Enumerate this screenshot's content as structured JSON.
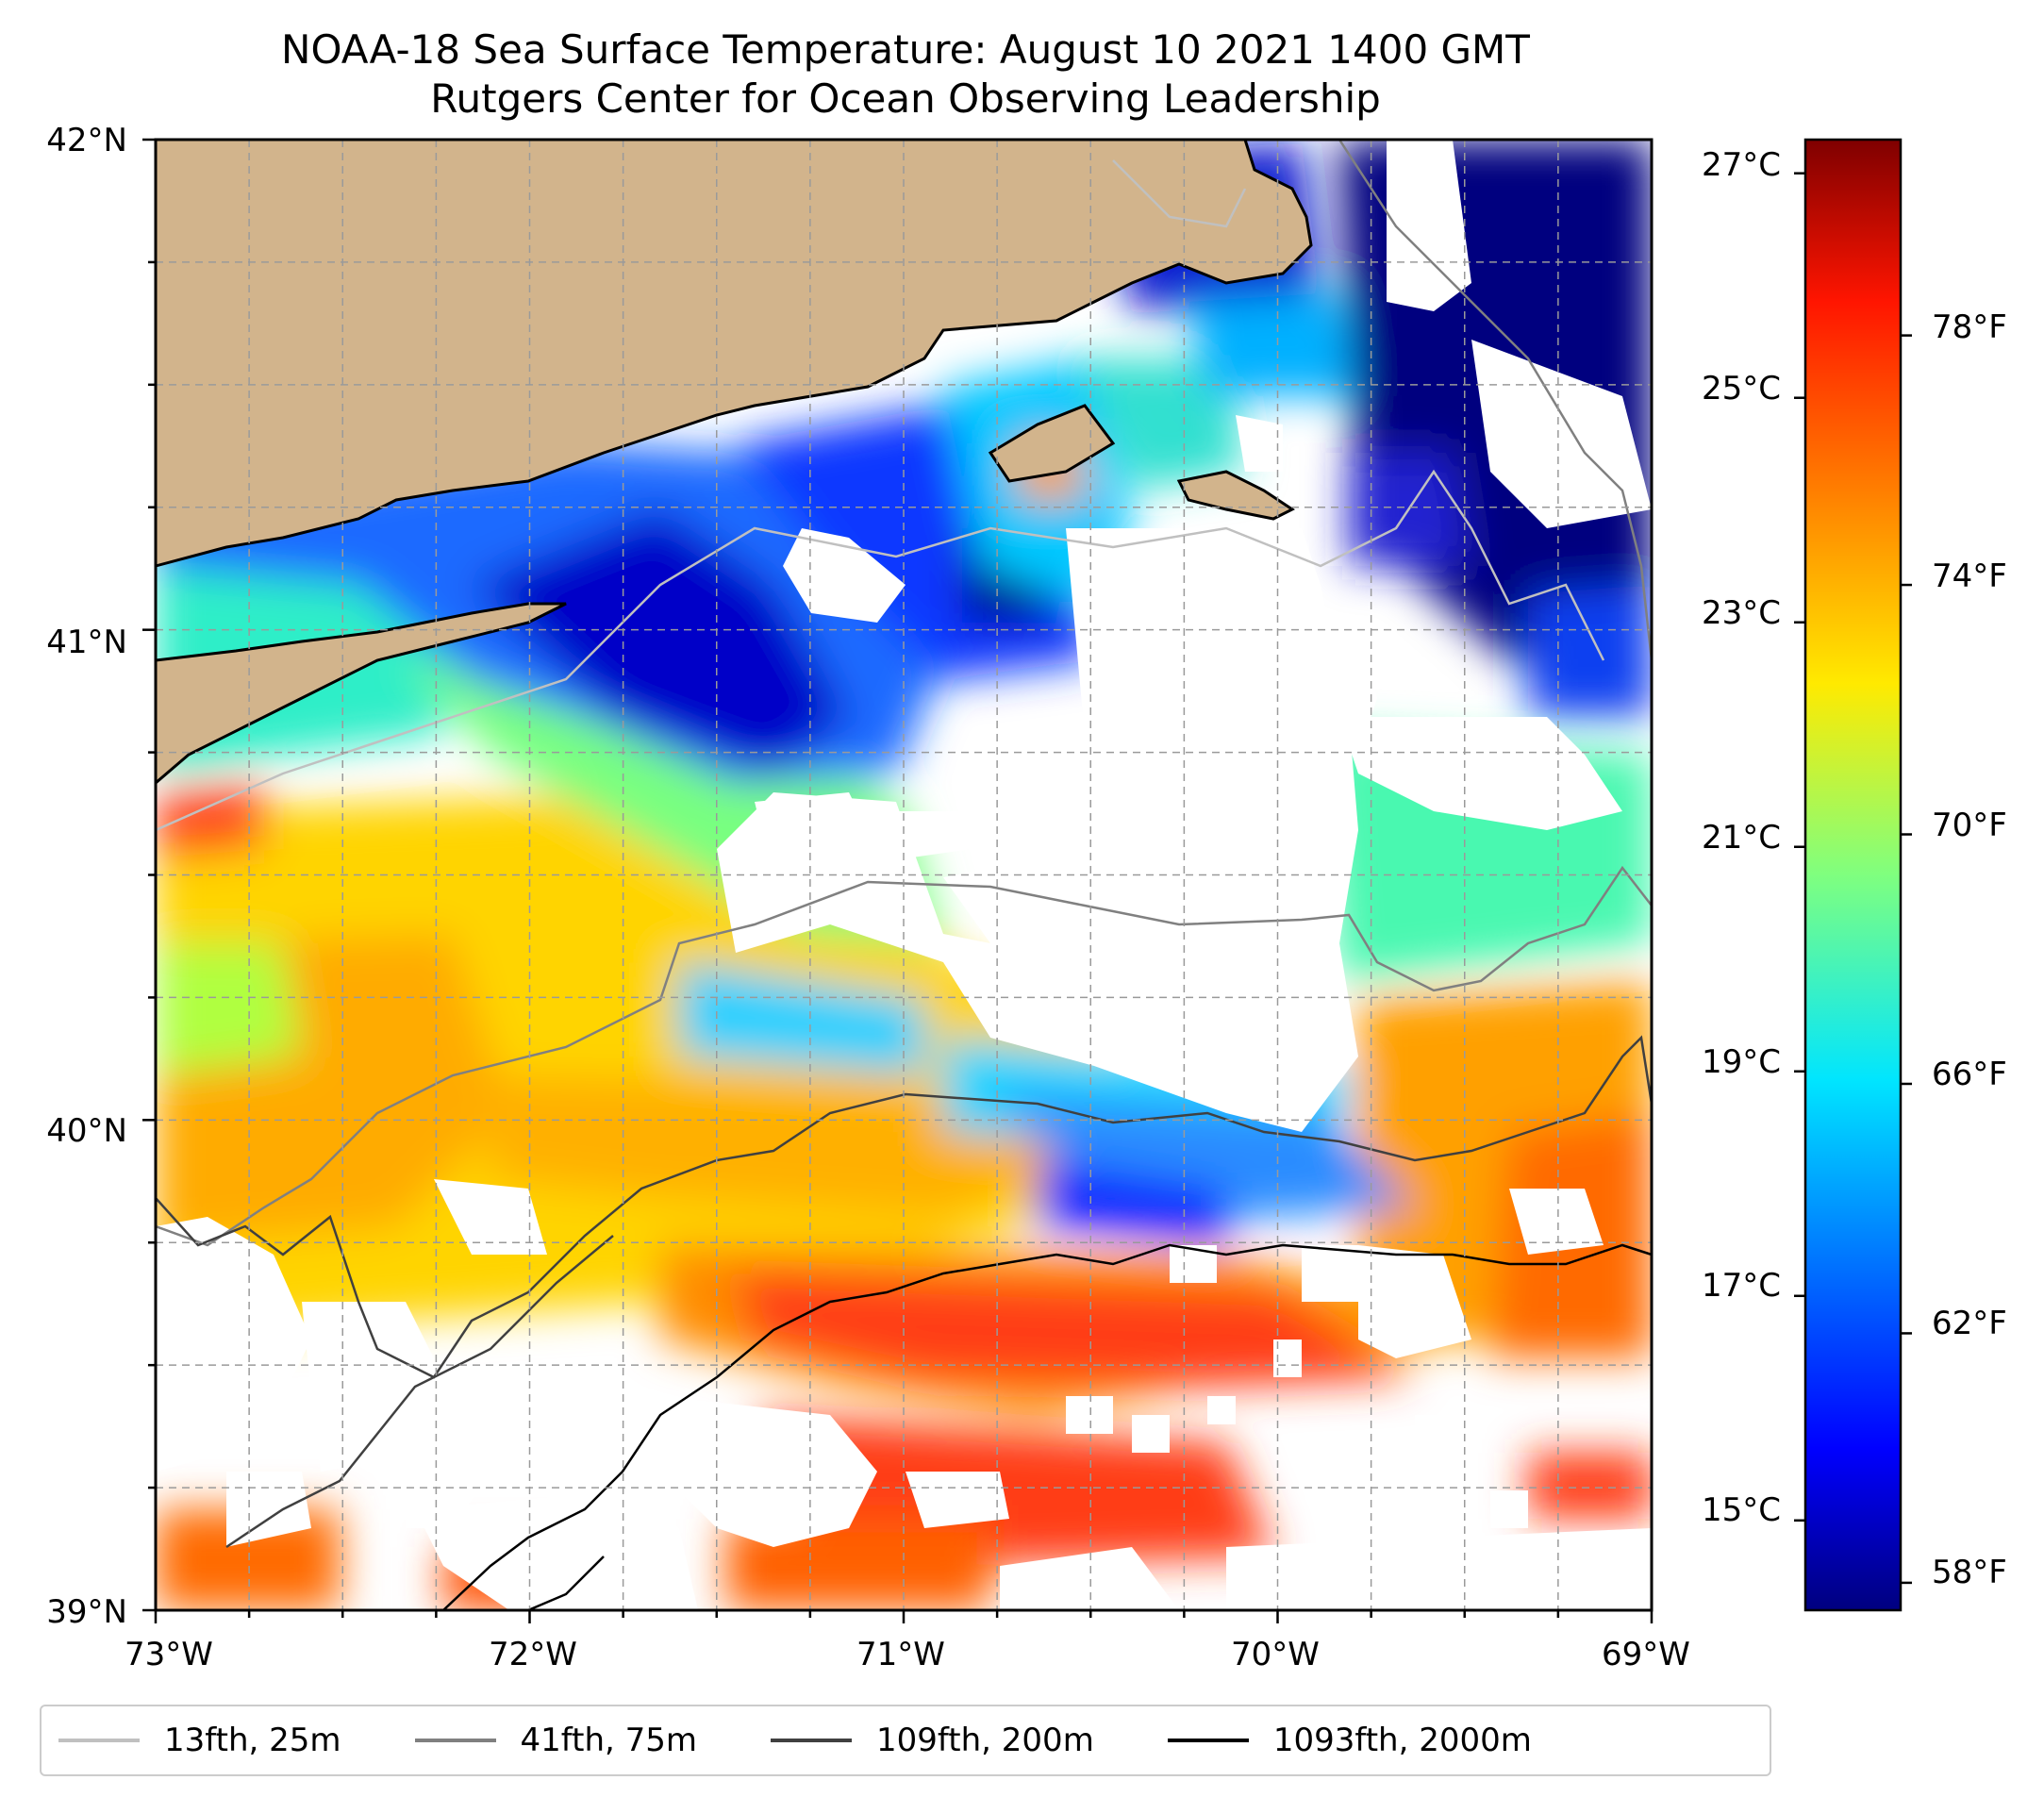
{
  "title": "NOAA-18 Sea Surface Temperature: August 10 2021 1400 GMT",
  "subtitle": "Rutgers Center for Ocean Observing Leadership",
  "map": {
    "lat_range": [
      39,
      42
    ],
    "lon_range": [
      -73,
      -69
    ],
    "lat_labels": [
      "42°N",
      "41°N",
      "40°N",
      "39°N"
    ],
    "lon_labels": [
      "73°W",
      "72°W",
      "71°W",
      "70°W",
      "69°W"
    ],
    "gridlines": "dashed",
    "land_color": "#d2b48c",
    "colormap": "jet"
  },
  "colorbar": {
    "celsius_range": [
      14.2,
      27.3
    ],
    "celsius_labels": [
      "27°C",
      "25°C",
      "23°C",
      "21°C",
      "19°C",
      "17°C",
      "15°C"
    ],
    "fahrenheit_labels": [
      "78°F",
      "74°F",
      "70°F",
      "66°F",
      "62°F",
      "58°F"
    ]
  },
  "legend": {
    "placement": "bottom",
    "items": [
      {
        "label": "13fth, 25m",
        "color": "#c0c0c0"
      },
      {
        "label": "41fth, 75m",
        "color": "#808080"
      },
      {
        "label": "109fth, 200m",
        "color": "#404040"
      },
      {
        "label": "1093fth, 2000m",
        "color": "#000000"
      }
    ]
  }
}
